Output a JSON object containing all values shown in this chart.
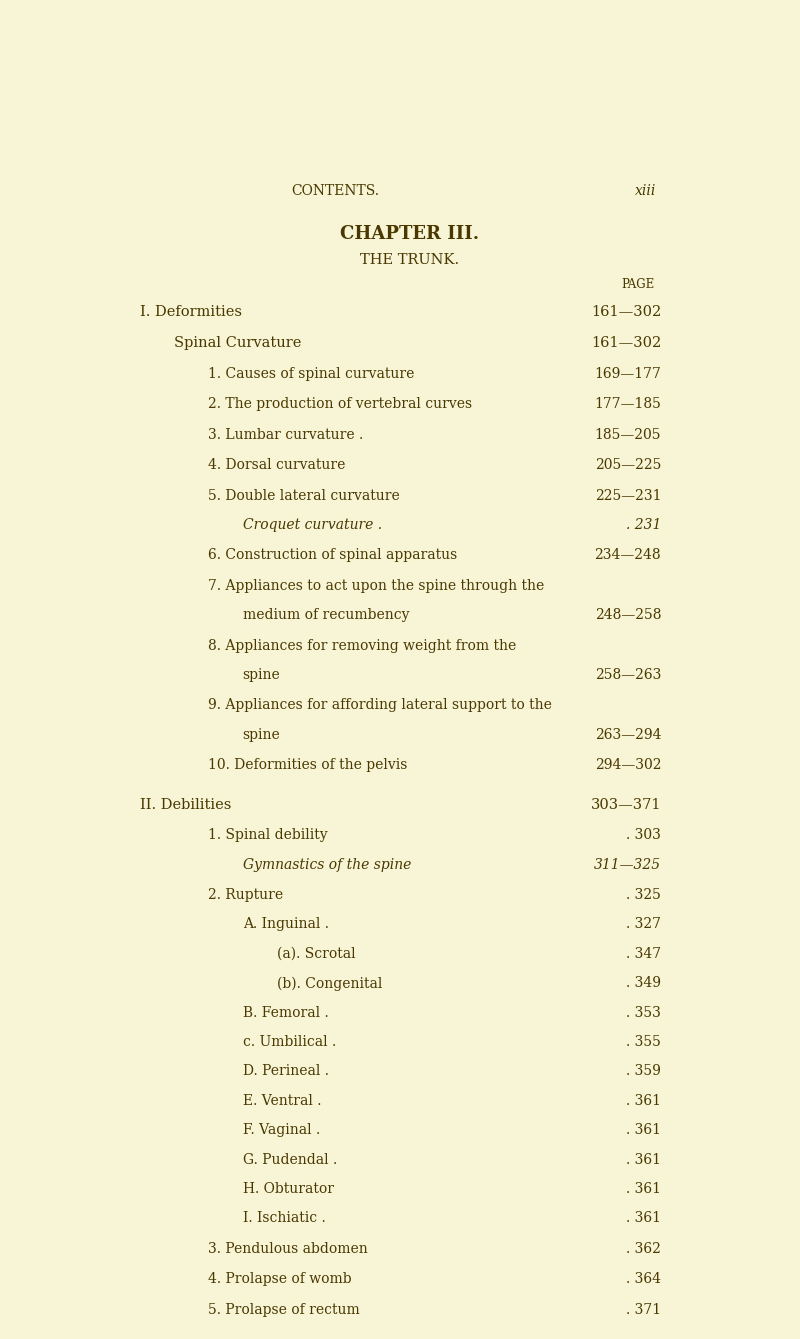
{
  "bg_color": "#f8f5d7",
  "text_color": "#4a3800",
  "header_left": "CONTENTS.",
  "header_right": "xiii",
  "chapter_title": "CHAPTER III.",
  "chapter_subtitle": "THE TRUNK.",
  "page_label": "PAGE",
  "lines": [
    {
      "indent": 0,
      "text": "I. Deformities",
      "page": "161—302",
      "style": "smallcaps",
      "vspace_before": 0.012
    },
    {
      "indent": 1,
      "text": "Spinal Curvature",
      "page": "161—302",
      "style": "smallcaps",
      "vspace_before": 0.004
    },
    {
      "indent": 2,
      "text": "1. Causes of spinal curvature",
      "page": "169—177",
      "style": "normal",
      "vspace_before": 0.003
    },
    {
      "indent": 2,
      "text": "2. The production of vertebral curves",
      "page": "177—185",
      "style": "normal",
      "vspace_before": 0.003
    },
    {
      "indent": 2,
      "text": "3. Lumbar curvature .",
      "page": "185—205",
      "style": "normal",
      "vspace_before": 0.003
    },
    {
      "indent": 2,
      "text": "4. Dorsal curvature",
      "page": "205—225",
      "style": "normal",
      "vspace_before": 0.003
    },
    {
      "indent": 2,
      "text": "5. Double lateral curvature",
      "page": "225—231",
      "style": "normal",
      "vspace_before": 0.003
    },
    {
      "indent": 3,
      "text": "Croquet curvature .",
      "page": ". 231",
      "style": "italic",
      "vspace_before": 0.002
    },
    {
      "indent": 2,
      "text": "6. Construction of spinal apparatus",
      "page": "234—248",
      "style": "normal",
      "vspace_before": 0.003
    },
    {
      "indent": 2,
      "text": "7. Appliances to act upon the spine through the",
      "page": "",
      "style": "normal",
      "vspace_before": 0.003
    },
    {
      "indent": 3,
      "text": "medium of recumbency",
      "page": "248—258",
      "style": "normal",
      "vspace_before": 0.002
    },
    {
      "indent": 2,
      "text": "8. Appliances for removing weight from the",
      "page": "",
      "style": "normal",
      "vspace_before": 0.003
    },
    {
      "indent": 3,
      "text": "spine",
      "page": "258—263",
      "style": "normal",
      "vspace_before": 0.002
    },
    {
      "indent": 2,
      "text": "9. Appliances for affording lateral support to the",
      "page": "",
      "style": "normal",
      "vspace_before": 0.003
    },
    {
      "indent": 3,
      "text": "spine",
      "page": "263—294",
      "style": "normal",
      "vspace_before": 0.002
    },
    {
      "indent": 2,
      "text": "10. Deformities of the pelvis",
      "page": "294—302",
      "style": "normal",
      "vspace_before": 0.003
    },
    {
      "indent": 0,
      "text": "II. Debilities",
      "page": "303—371",
      "style": "smallcaps",
      "vspace_before": 0.012
    },
    {
      "indent": 2,
      "text": "1. Spinal debility",
      "page": ". 303",
      "style": "normal",
      "vspace_before": 0.003
    },
    {
      "indent": 3,
      "text": "Gymnastics of the spine",
      "page": "311—325",
      "style": "italic",
      "vspace_before": 0.002
    },
    {
      "indent": 2,
      "text": "2. Rupture",
      "page": ". 325",
      "style": "normal",
      "vspace_before": 0.003
    },
    {
      "indent": 3,
      "text": "A. Inguinal .",
      "page": ". 327",
      "style": "smallcaps_sub",
      "vspace_before": 0.002
    },
    {
      "indent": 4,
      "text": "(a). Scrotal",
      "page": ". 347",
      "style": "normal",
      "vspace_before": 0.002
    },
    {
      "indent": 4,
      "text": "(b). Congenital",
      "page": ". 349",
      "style": "normal",
      "vspace_before": 0.002
    },
    {
      "indent": 3,
      "text": "B. Femoral .",
      "page": ". 353",
      "style": "smallcaps_sub",
      "vspace_before": 0.002
    },
    {
      "indent": 3,
      "text": "c. Umbilical .",
      "page": ". 355",
      "style": "smallcaps_sub",
      "vspace_before": 0.002
    },
    {
      "indent": 3,
      "text": "D. Perineal .",
      "page": ". 359",
      "style": "smallcaps_sub",
      "vspace_before": 0.002
    },
    {
      "indent": 3,
      "text": "E. Ventral .",
      "page": ". 361",
      "style": "smallcaps_sub",
      "vspace_before": 0.002
    },
    {
      "indent": 3,
      "text": "F. Vaginal .",
      "page": ". 361",
      "style": "smallcaps_sub",
      "vspace_before": 0.002
    },
    {
      "indent": 3,
      "text": "G. Pudendal .",
      "page": ". 361",
      "style": "smallcaps_sub",
      "vspace_before": 0.002
    },
    {
      "indent": 3,
      "text": "H. Obturator",
      "page": ". 361",
      "style": "smallcaps_sub",
      "vspace_before": 0.002
    },
    {
      "indent": 3,
      "text": "I. Ischiatic .",
      "page": ". 361",
      "style": "smallcaps_sub",
      "vspace_before": 0.002
    },
    {
      "indent": 2,
      "text": "3. Pendulous abdomen",
      "page": ". 362",
      "style": "normal",
      "vspace_before": 0.003
    },
    {
      "indent": 2,
      "text": "4. Prolapse of womb",
      "page": ". 364",
      "style": "normal",
      "vspace_before": 0.003
    },
    {
      "indent": 2,
      "text": "5. Prolapse of rectum",
      "page": ". 371",
      "style": "normal",
      "vspace_before": 0.003
    }
  ]
}
